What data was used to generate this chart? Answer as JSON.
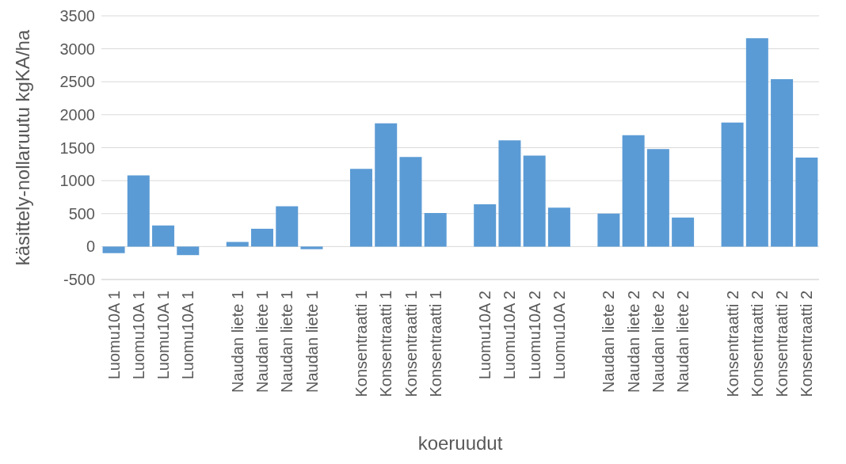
{
  "chart_data": {
    "type": "bar",
    "xlabel": "koeruudut",
    "ylabel": "käsittely-nollaruutu kgKA/ha",
    "categories": [
      "Luomu10A 1",
      "Luomu10A 1",
      "Luomu10A 1",
      "Luomu10A 1",
      null,
      "Naudan liete 1",
      "Naudan liete 1",
      "Naudan liete 1",
      "Naudan liete 1",
      null,
      "Konsentraatti 1",
      "Konsentraatti 1",
      "Konsentraatti 1",
      "Konsentraatti 1",
      null,
      "Luomu10A 2",
      "Luomu10A 2",
      "Luomu10A 2",
      "Luomu10A 2",
      null,
      "Naudan liete 2",
      "Naudan liete 2",
      "Naudan liete 2",
      "Naudan liete 2",
      null,
      "Konsentraatti 2",
      "Konsentraatti 2",
      "Konsentraatti 2",
      "Konsentraatti 2"
    ],
    "values": [
      -100,
      1080,
      320,
      -130,
      null,
      70,
      270,
      610,
      -40,
      null,
      1180,
      1870,
      1360,
      510,
      null,
      640,
      1610,
      1380,
      590,
      null,
      500,
      1690,
      1480,
      440,
      null,
      1880,
      3160,
      2540,
      1350
    ],
    "color": "#5b9bd5",
    "ylim": [
      -500,
      3500
    ],
    "yticks": [
      -500,
      0,
      500,
      1000,
      1500,
      2000,
      2500,
      3000,
      3500
    ],
    "grid": "y"
  }
}
